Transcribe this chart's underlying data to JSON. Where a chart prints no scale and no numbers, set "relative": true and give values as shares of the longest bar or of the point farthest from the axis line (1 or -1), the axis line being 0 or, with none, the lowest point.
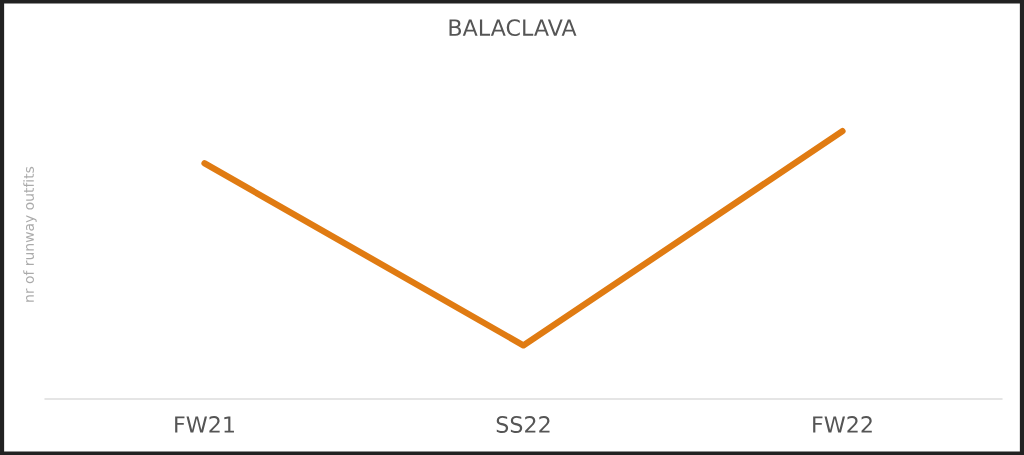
{
  "chart_data": {
    "type": "line",
    "title": "BALACLAVA",
    "ylabel": "nr of runway outfits",
    "categories": [
      "FW21",
      "SS22",
      "FW22"
    ],
    "relative": true,
    "series": [
      {
        "color": "#e07b12",
        "values": [
          0.88,
          0.2,
          1
        ]
      }
    ],
    "grid": false,
    "legend": false,
    "marker": "none",
    "line_style": "solid"
  }
}
